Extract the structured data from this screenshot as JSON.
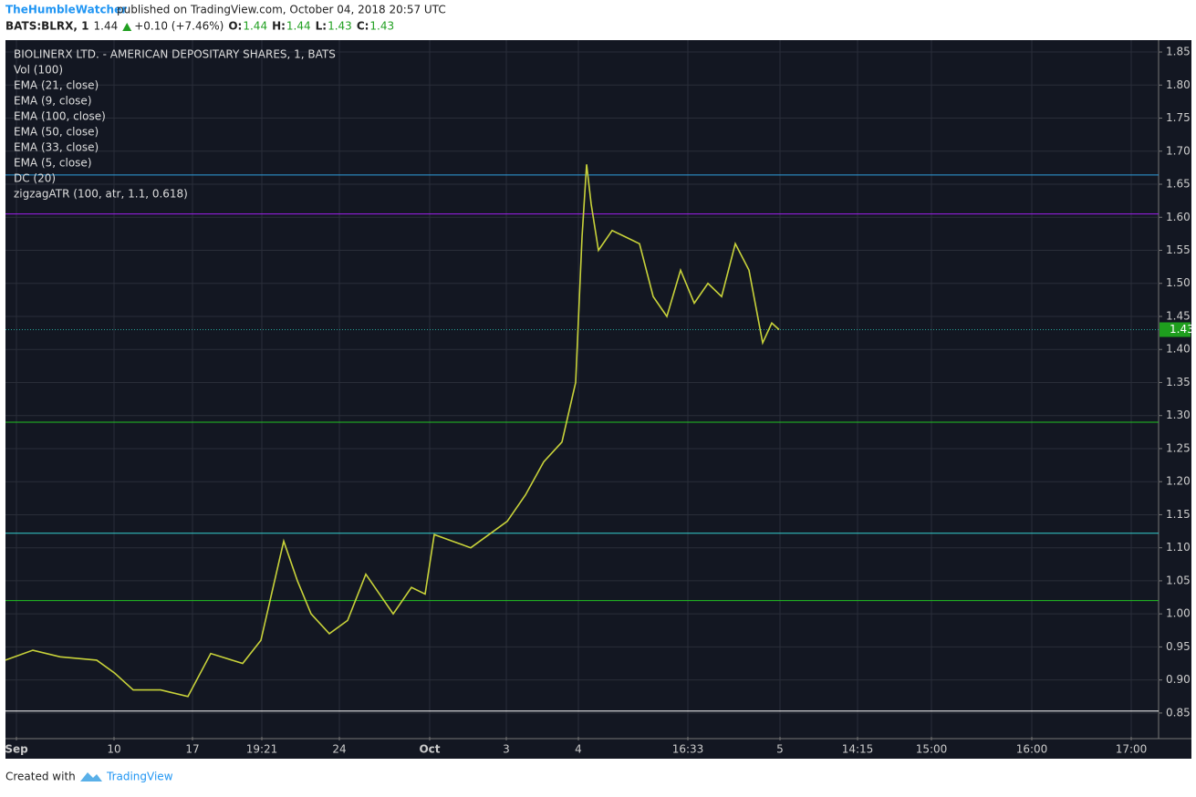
{
  "header": {
    "author": "TheHumbleWatcher",
    "published": "published on TradingView.com, October 04, 2018 20:57 UTC",
    "symbol": "BATS:BLRX, 1",
    "last": "1.44",
    "change": "+0.10 (+7.46%)",
    "o_label": "O:",
    "o": "1.44",
    "h_label": "H:",
    "h": "1.44",
    "l_label": "L:",
    "l": "1.43",
    "c_label": "C:",
    "c": "1.43"
  },
  "footer": {
    "created": "Created with",
    "brand": "TradingView"
  },
  "chart_data": {
    "type": "line",
    "title": "BIOLINERX LTD. - AMERICAN DEPOSITARY SHARES, 1, BATS",
    "indicators": [
      "Vol (100)",
      "EMA (21, close)",
      "EMA (9, close)",
      "EMA (100, close)",
      "EMA (50, close)",
      "EMA (33, close)",
      "EMA (5, close)",
      "DC (20)",
      "zigzagATR (100, atr, 1.1, 0.618)"
    ],
    "x": [
      0,
      30,
      60,
      100,
      120,
      140,
      170,
      200,
      225,
      260,
      280,
      295,
      305,
      320,
      335,
      355,
      375,
      395,
      410,
      425,
      445,
      460,
      470,
      490,
      510,
      530,
      550,
      570,
      590,
      610,
      625,
      632,
      637,
      642,
      650,
      665,
      680,
      695,
      710,
      725,
      740,
      755,
      770,
      785,
      800,
      815,
      830,
      840,
      848
    ],
    "values": [
      0.93,
      0.945,
      0.935,
      0.93,
      0.91,
      0.885,
      0.885,
      0.875,
      0.94,
      0.925,
      0.96,
      1.05,
      1.11,
      1.05,
      1.0,
      0.97,
      0.99,
      1.06,
      1.03,
      1.0,
      1.04,
      1.03,
      1.12,
      1.11,
      1.1,
      1.12,
      1.14,
      1.18,
      1.23,
      1.26,
      1.35,
      1.57,
      1.68,
      1.62,
      1.55,
      1.58,
      1.57,
      1.56,
      1.48,
      1.45,
      1.52,
      1.47,
      1.5,
      1.48,
      1.56,
      1.52,
      1.41,
      1.44,
      1.43
    ],
    "color": "#c8d23a",
    "levels": [
      {
        "value": 1.664,
        "color": "#2f9fe0"
      },
      {
        "value": 1.605,
        "color": "#a020f0"
      },
      {
        "value": 1.29,
        "color": "#22c322"
      },
      {
        "value": 1.122,
        "color": "#35d0d0"
      },
      {
        "value": 1.02,
        "color": "#22c322"
      },
      {
        "value": 0.853,
        "color": "#ffffff"
      }
    ],
    "last_price": 1.43,
    "last_price_label": "1.43",
    "xlim": [
      0,
      1262
    ],
    "xticks": [
      {
        "value": 12,
        "label": "Sep"
      },
      {
        "value": 119,
        "label": "10"
      },
      {
        "value": 205,
        "label": "17"
      },
      {
        "value": 281,
        "label": "19:21"
      },
      {
        "value": 366,
        "label": "24"
      },
      {
        "value": 465,
        "label": "Oct"
      },
      {
        "value": 549,
        "label": "3"
      },
      {
        "value": 628,
        "label": "4"
      },
      {
        "value": 748,
        "label": "16:33"
      },
      {
        "value": 849,
        "label": "5"
      },
      {
        "value": 934,
        "label": "14:15"
      },
      {
        "value": 1015,
        "label": "15:00"
      },
      {
        "value": 1125,
        "label": "16:00"
      },
      {
        "value": 1234,
        "label": "17:00"
      }
    ],
    "ylim": [
      0.814,
      1.868
    ],
    "yticks": [
      0.85,
      {
        "value": 0.9,
        "label": "0.90"
      },
      0.95,
      {
        "value": 1.0,
        "label": "1.00"
      },
      1.05,
      {
        "value": 1.1,
        "label": "1.10"
      },
      1.15,
      {
        "value": 1.2,
        "label": "1.20"
      },
      1.25,
      {
        "value": 1.3,
        "label": "1.30"
      },
      1.35,
      {
        "value": 1.4,
        "label": "1.40"
      },
      1.45,
      {
        "value": 1.5,
        "label": "1.50"
      },
      1.55,
      {
        "value": 1.6,
        "label": "1.60"
      },
      1.65,
      {
        "value": 1.7,
        "label": "1.70"
      },
      1.75,
      {
        "value": 1.8,
        "label": "1.80"
      },
      1.85
    ],
    "grid": true
  }
}
